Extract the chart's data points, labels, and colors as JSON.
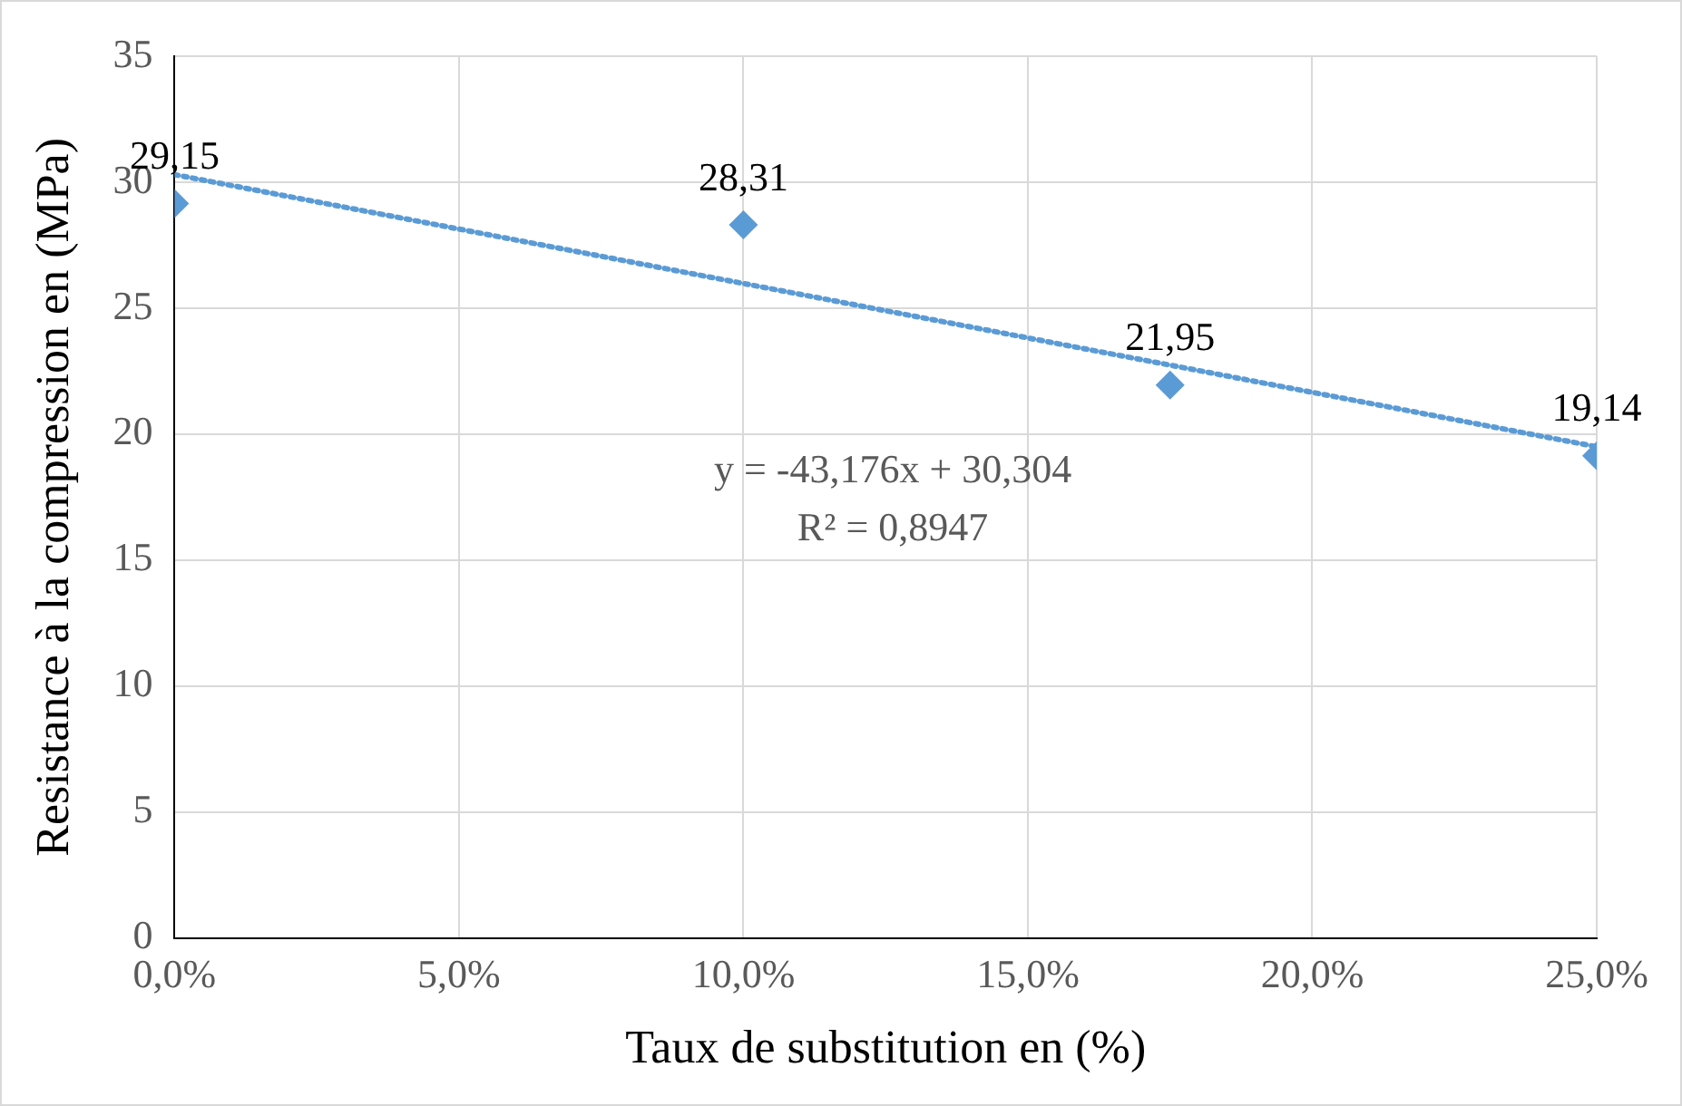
{
  "chart_data": {
    "type": "scatter",
    "xlabel": "Taux de substitution en (%)",
    "ylabel": "Resistance à la compression en (MPa)",
    "x": [
      0,
      0.1,
      0.175,
      0.25
    ],
    "series": [
      {
        "color": "#5b9bd5",
        "values": [
          29.15,
          28.31,
          21.95,
          19.14
        ],
        "value_labels": [
          "29,15",
          "28,31",
          "21,95",
          "19,14"
        ],
        "marker": "diamond"
      },
      {
        "type": "line",
        "color": "#5b9bd5",
        "x": [
          0,
          0.25
        ],
        "values": [
          30.3,
          19.5
        ],
        "line_style": "dotted",
        "marker": "none"
      }
    ],
    "xlim": [
      0,
      0.25
    ],
    "xticks": [
      {
        "value": 0,
        "label": "0,0%"
      },
      {
        "value": 0.05,
        "label": "5,0%"
      },
      {
        "value": 0.1,
        "label": "10,0%"
      },
      {
        "value": 0.15,
        "label": "15,0%"
      },
      {
        "value": 0.2,
        "label": "20,0%"
      },
      {
        "value": 0.25,
        "label": "25,0%"
      }
    ],
    "ylim": [
      0,
      35
    ],
    "yticks": [
      0,
      5,
      10,
      15,
      20,
      25,
      30,
      35
    ],
    "grid": true,
    "annotations": [
      "y = -43,176x + 30,304",
      "R² = 0,8947"
    ]
  }
}
